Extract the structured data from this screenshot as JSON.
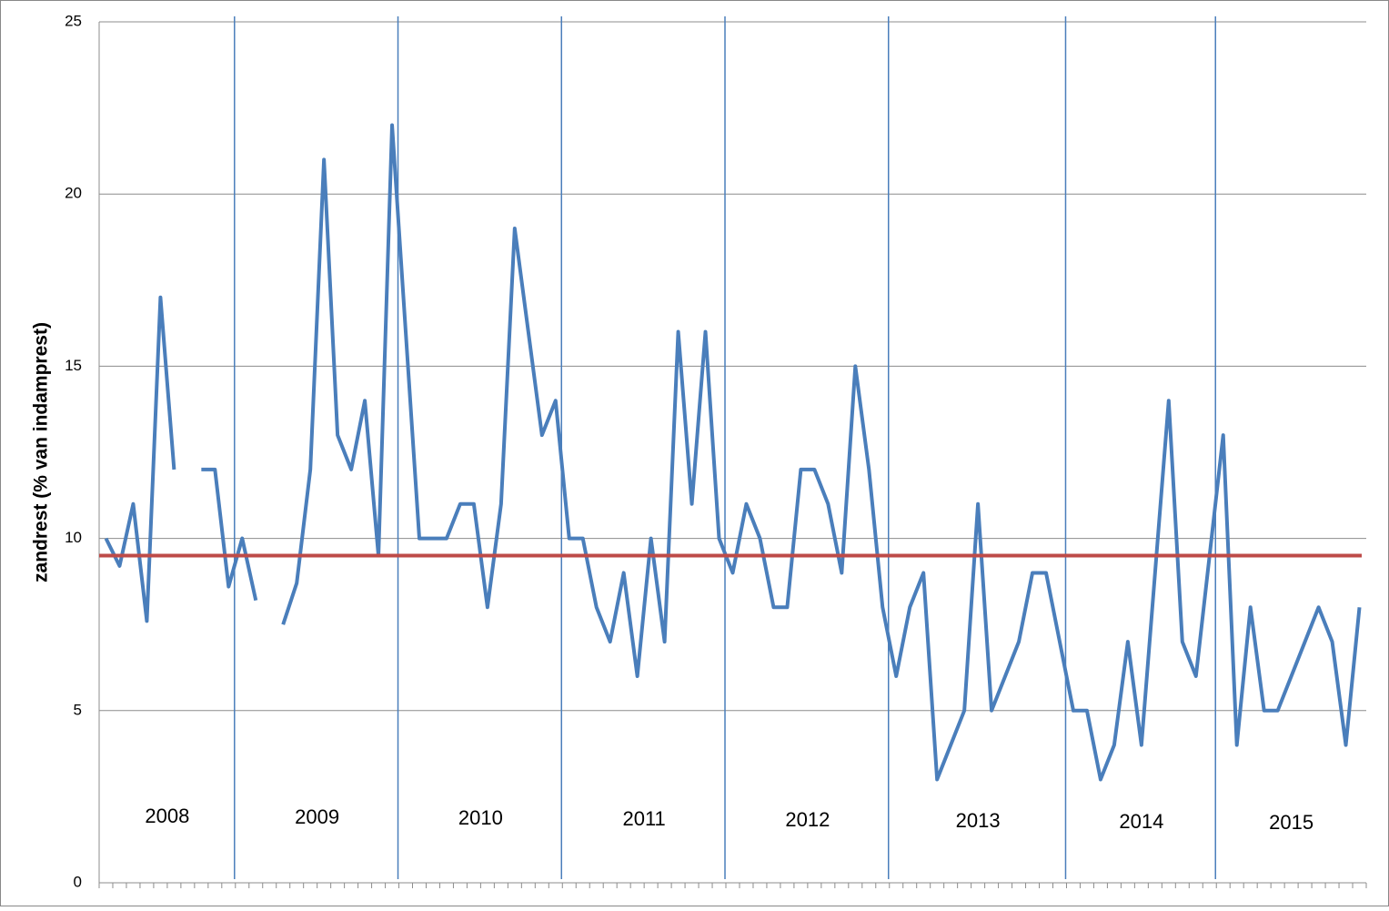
{
  "chart_data": {
    "type": "line",
    "y_label": "zandrest (% van indamprest)",
    "ylim": [
      0,
      25
    ],
    "yticks": [
      0,
      5,
      10,
      15,
      20,
      25
    ],
    "grid": true,
    "categories": [
      null,
      null,
      null,
      null,
      null,
      null,
      null,
      null,
      null,
      null,
      null,
      null,
      null,
      null,
      null,
      null,
      null,
      null,
      null,
      null,
      null,
      null,
      null,
      null,
      null,
      null,
      null,
      null,
      null,
      null,
      null,
      null,
      null,
      null,
      null,
      null,
      null,
      null,
      null,
      null,
      null,
      null,
      null,
      null,
      null,
      null,
      null,
      null,
      null,
      null,
      null,
      null,
      null,
      null,
      null,
      null,
      null,
      null,
      null,
      null,
      null,
      null,
      null,
      null,
      null,
      null,
      null,
      null,
      null,
      null,
      null,
      null,
      null,
      null,
      null,
      null,
      null,
      null,
      null,
      null,
      null,
      null,
      null,
      null,
      null,
      null,
      null,
      null,
      null,
      null,
      null,
      null,
      null
    ],
    "series": [
      {
        "color": "#4a7ebb",
        "values": [
          10,
          9.2,
          11,
          7.6,
          17,
          12,
          null,
          12,
          12,
          8.6,
          10,
          8.2,
          null,
          7.5,
          8.7,
          12,
          21,
          13,
          12,
          14,
          9.5,
          22,
          16,
          10,
          10,
          10,
          11,
          11,
          8,
          11,
          19,
          16,
          13,
          14,
          10,
          10,
          8,
          7,
          9,
          6,
          10,
          7,
          16,
          11,
          16,
          10,
          9,
          11,
          10,
          8,
          8,
          12,
          12,
          11,
          9,
          15,
          12,
          8,
          6,
          8,
          9,
          3,
          4,
          5,
          11,
          5,
          6,
          7,
          9,
          9,
          7,
          5,
          5,
          3,
          4,
          7,
          4,
          9,
          14,
          7,
          6,
          9.5,
          13,
          4,
          8,
          5,
          5,
          6,
          7,
          8,
          7,
          4,
          8
        ]
      }
    ],
    "reference_line": {
      "value": 9.5,
      "color": "#be4b48"
    },
    "year_labels": [
      "2008",
      "2009",
      "2010",
      "2011",
      "2012",
      "2013",
      "2014",
      "2015"
    ]
  }
}
